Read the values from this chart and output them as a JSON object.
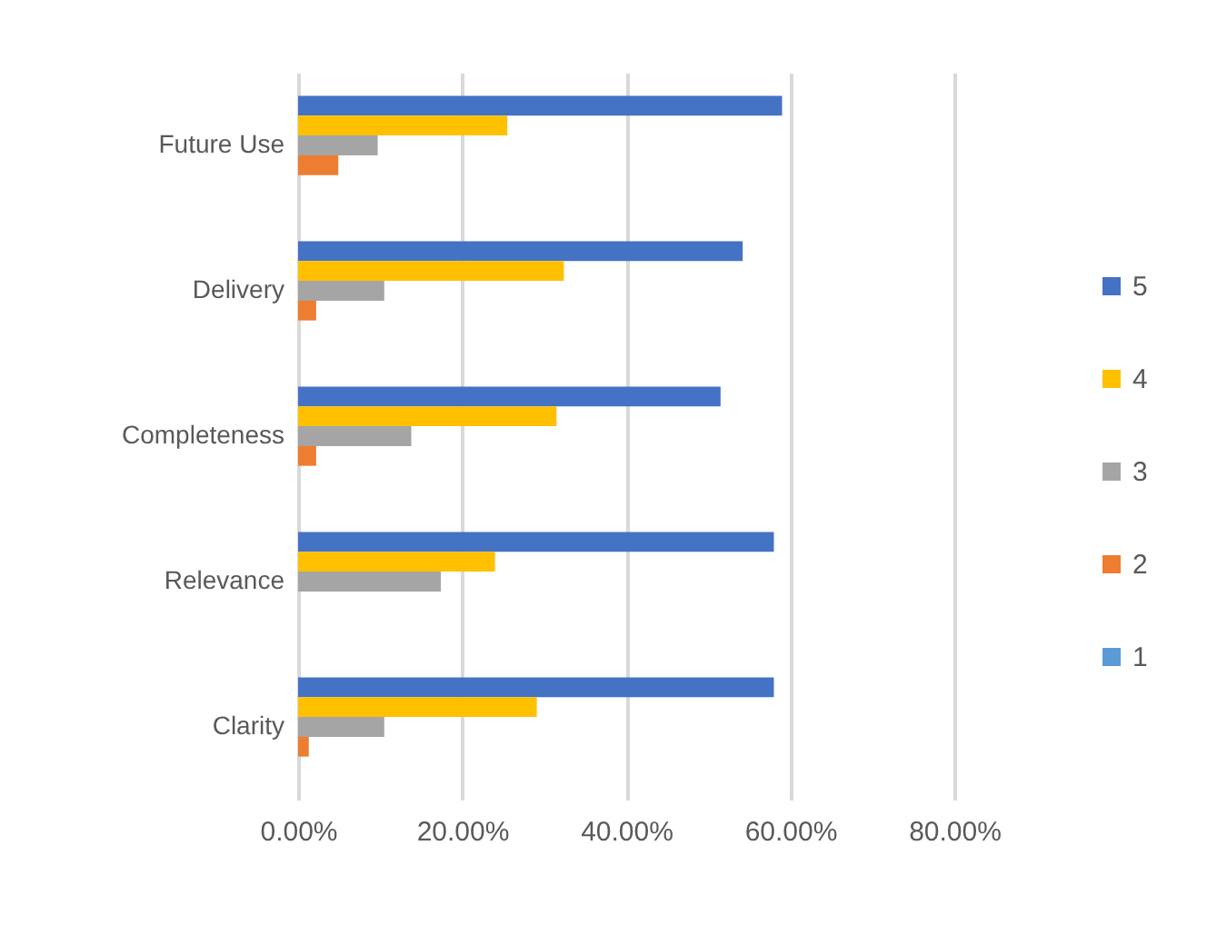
{
  "chart_data": {
    "type": "bar",
    "orientation": "horizontal",
    "categories": [
      "Future Use",
      "Delivery",
      "Completeness",
      "Relevance",
      "Clarity"
    ],
    "series": [
      {
        "name": "5",
        "color": "#4472c4",
        "values": [
          59.0,
          54.2,
          51.5,
          58.0,
          58.0
        ]
      },
      {
        "name": "4",
        "color": "#ffc000",
        "values": [
          25.5,
          32.4,
          31.5,
          24.0,
          29.1
        ]
      },
      {
        "name": "3",
        "color": "#a5a5a5",
        "values": [
          9.7,
          10.5,
          13.8,
          17.4,
          10.5
        ]
      },
      {
        "name": "2",
        "color": "#ed7d31",
        "values": [
          4.9,
          2.2,
          2.2,
          0,
          1.3
        ]
      },
      {
        "name": "1",
        "color": "#5b9bd5",
        "values": [
          0,
          0,
          0,
          0,
          0
        ]
      }
    ],
    "xlim": [
      0,
      80
    ],
    "xticks": [
      {
        "value": 0,
        "label": "0.00%"
      },
      {
        "value": 20,
        "label": "20.00%"
      },
      {
        "value": 40,
        "label": "40.00%"
      },
      {
        "value": 60,
        "label": "60.00%"
      },
      {
        "value": 80,
        "label": "80.00%"
      }
    ],
    "grid": "x",
    "legend": "right"
  }
}
